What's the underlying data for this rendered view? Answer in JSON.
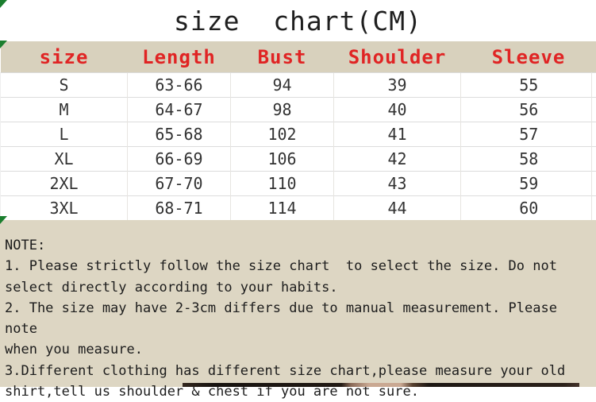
{
  "chart_data": {
    "type": "table",
    "title": "size  chart(CM)",
    "columns": [
      "size",
      "Length",
      "Bust",
      "Shoulder",
      "Sleeve"
    ],
    "rows": [
      [
        "S",
        "63-66",
        "94",
        "39",
        "55"
      ],
      [
        "M",
        "64-67",
        "98",
        "40",
        "56"
      ],
      [
        "L",
        "65-68",
        "102",
        "41",
        "57"
      ],
      [
        "XL",
        "66-69",
        "106",
        "42",
        "58"
      ],
      [
        "2XL",
        "67-70",
        "110",
        "43",
        "59"
      ],
      [
        "3XL",
        "68-71",
        "114",
        "44",
        "60"
      ]
    ],
    "header_text_color": "#e02424",
    "header_background": "#d8d1bd",
    "units": "CM"
  },
  "note": {
    "label": "NOTE:",
    "lines": [
      "1. Please strictly follow the size chart  to select the size. Do not",
      "select directly according to your habits.",
      "2. The size may have 2-3cm differs due to manual measurement. Please note",
      "when you measure.",
      "3.Different clothing has different size chart,please measure your old",
      "shirt,tell us shoulder & chest if you are not sure."
    ],
    "background": "#ddd6c3"
  },
  "markers": {
    "color": "#1a7e2e"
  }
}
